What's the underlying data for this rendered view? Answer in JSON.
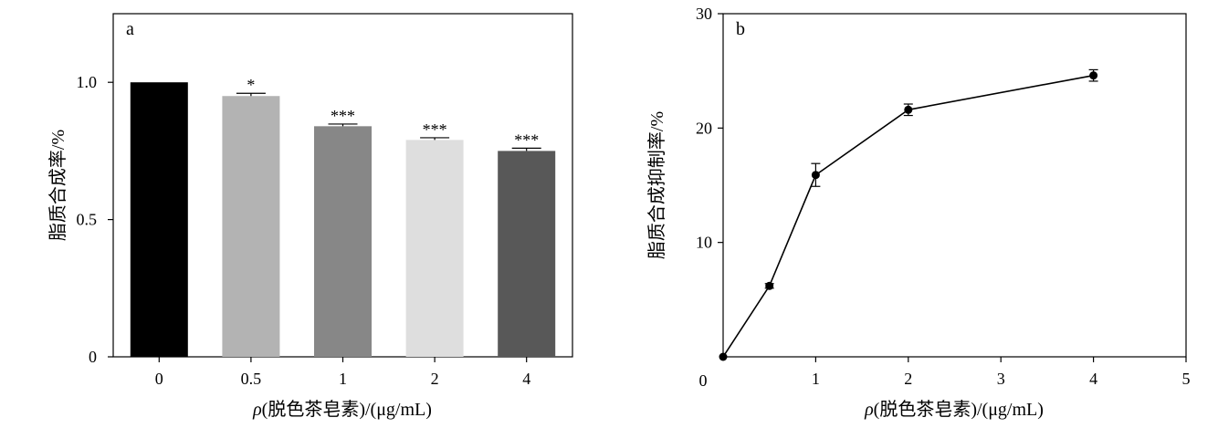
{
  "chart_data": [
    {
      "type": "bar",
      "panel_label": "a",
      "title": "",
      "xlabel_italic": "ρ",
      "xlabel_rest": "(脱色茶皂素)/(μg/mL)",
      "ylabel": "脂质合成率/%",
      "categories": [
        "0",
        "0.5",
        "1",
        "2",
        "4"
      ],
      "values": [
        1.0,
        0.95,
        0.84,
        0.79,
        0.75
      ],
      "errors": [
        0,
        0.01,
        0.008,
        0.008,
        0.01
      ],
      "significance": [
        "",
        "*",
        "***",
        "***",
        "***"
      ],
      "bar_colors": [
        "#000000",
        "#b3b3b3",
        "#878787",
        "#dedede",
        "#585858"
      ],
      "ylim": [
        0,
        1.25
      ],
      "yticks": [
        0,
        0.5,
        1.0
      ],
      "ytick_labels": [
        "0",
        "0.5",
        "1.0"
      ],
      "grid": false,
      "legend": "none"
    },
    {
      "type": "line",
      "panel_label": "b",
      "title": "",
      "xlabel_italic": "ρ",
      "xlabel_rest": "(脱色茶皂素)/(μg/mL)",
      "ylabel": "脂质合成抑制率/%",
      "x": [
        0,
        0.5,
        1,
        2,
        4
      ],
      "y": [
        0,
        6.2,
        15.9,
        21.6,
        24.6
      ],
      "errors": [
        0,
        0.2,
        1.0,
        0.5,
        0.5
      ],
      "xlim": [
        0,
        5
      ],
      "ylim": [
        0,
        30
      ],
      "xticks": [
        0,
        1,
        2,
        3,
        4,
        5
      ],
      "xtick_labels": [
        "0",
        "1",
        "2",
        "3",
        "4",
        "5"
      ],
      "yticks": [
        10,
        20,
        30
      ],
      "ytick_labels": [
        "10",
        "20",
        "30"
      ],
      "grid": false,
      "legend": "none"
    }
  ]
}
